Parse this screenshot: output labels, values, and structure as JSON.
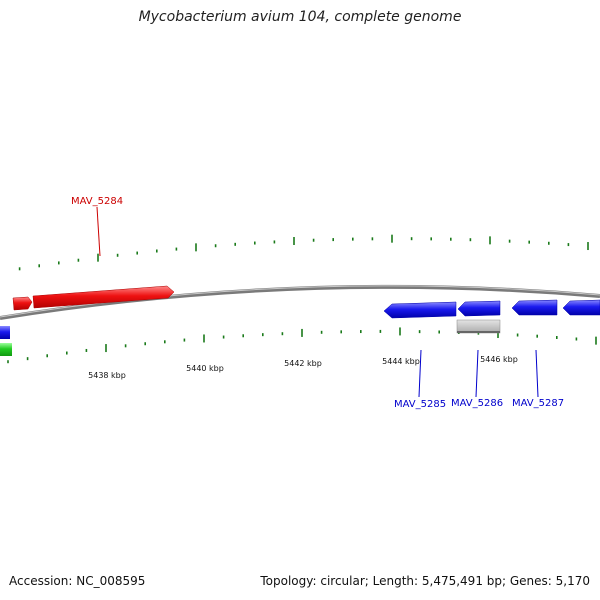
{
  "title": "Mycobacterium avium 104, complete genome",
  "scale_labels": [
    "5438 kbp",
    "5440 kbp",
    "5442 kbp",
    "5444 kbp",
    "5446 kbp"
  ],
  "genes": [
    {
      "label": "MAV_5284",
      "color": "#dd0000",
      "strand": "forward"
    },
    {
      "label": "MAV_5285",
      "color": "#0000cc",
      "strand": "reverse"
    },
    {
      "label": "MAV_5286",
      "color": "#0000cc",
      "strand": "reverse"
    },
    {
      "label": "MAV_5287",
      "color": "#0000cc",
      "strand": "reverse"
    }
  ],
  "colors": {
    "forward_gene": "#ee1111",
    "reverse_gene": "#1a1aee",
    "rna_gene": "#22cc22",
    "pseudo_gene": "#c0c0c0",
    "backbone": "#808080",
    "ticks": "#1a7a1a"
  },
  "footer": {
    "accession": "Accession: NC_008595",
    "summary": "Topology: circular; Length: 5,475,491 bp; Genes: 5,170"
  }
}
